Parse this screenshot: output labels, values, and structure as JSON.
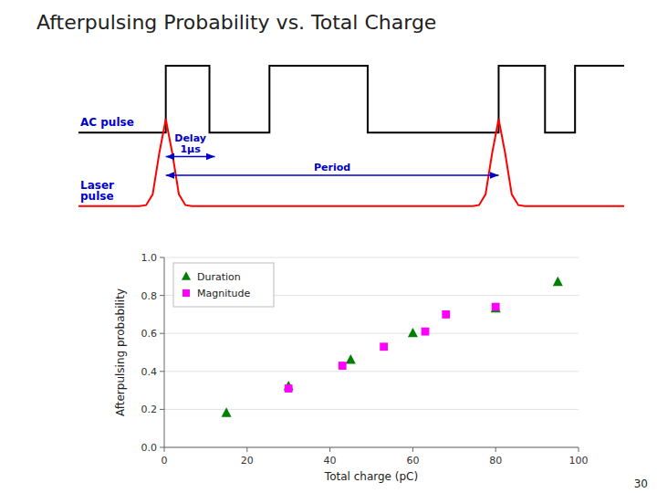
{
  "chart_data": [
    {
      "type": "line",
      "tick_labels": false,
      "color": "#0000CC",
      "xlim": [
        0,
        10
      ],
      "ylim": [
        -0.25,
        1.15
      ],
      "series": [
        {
          "name": "AC pulse",
          "color": "#000000",
          "x": [
            0,
            1.6,
            1.6,
            2.4,
            2.4,
            3.5,
            3.5,
            5.3,
            5.3,
            7.7,
            7.7,
            8.55,
            8.55,
            9.1,
            9.1,
            10
          ],
          "values": [
            0.5,
            0.5,
            1.0,
            1.0,
            0.5,
            0.5,
            1.0,
            1.0,
            0.5,
            0.5,
            1.0,
            1.0,
            0.5,
            0.5,
            1.0,
            1.0
          ]
        },
        {
          "name": "Laser\npulse",
          "color": "#FF0000",
          "x": [
            0,
            1.12,
            1.24,
            1.36,
            1.48,
            1.6,
            1.72,
            1.84,
            1.96,
            2.08,
            7.22,
            7.34,
            7.46,
            7.58,
            7.7,
            7.82,
            7.94,
            8.06,
            8.18,
            10
          ],
          "values": [
            -0.05,
            -0.05,
            -0.043,
            0.038,
            0.344,
            0.6,
            0.344,
            0.038,
            -0.043,
            -0.05,
            -0.05,
            -0.043,
            0.038,
            0.344,
            0.6,
            0.344,
            0.038,
            -0.043,
            -0.05,
            -0.05
          ]
        }
      ],
      "annotations": [
        {
          "text": "Delay\n1μs",
          "x": [
            1.6,
            2.5
          ],
          "y": 0.32
        },
        {
          "text": "Period",
          "x": [
            1.6,
            7.7
          ],
          "y": 0.18
        }
      ]
    },
    {
      "type": "scatter",
      "title": "Afterpulsing Probability vs. Total Charge",
      "xlabel": "Total charge (pC)",
      "ylabel": "Afterpulsing probability",
      "xlim": [
        0,
        100
      ],
      "ylim": [
        0,
        1
      ],
      "xticks": [
        0,
        20,
        40,
        60,
        80,
        100
      ],
      "yticks": [
        {
          "value": 0,
          "label": "0.0"
        },
        0.2,
        0.4,
        0.6,
        0.8,
        {
          "value": 1,
          "label": "1.0"
        }
      ],
      "grid": true,
      "legend": "upper left",
      "series": [
        {
          "name": "Duration",
          "color": "#008000",
          "marker": "triangle",
          "x": [
            15,
            30,
            45,
            60,
            80,
            95
          ],
          "values": [
            0.18,
            0.32,
            0.46,
            0.6,
            0.73,
            0.87
          ]
        },
        {
          "name": "Magnitude",
          "color": "#FF00FF",
          "marker": "square",
          "x": [
            30,
            43,
            53,
            63,
            68,
            80
          ],
          "values": [
            0.31,
            0.43,
            0.53,
            0.61,
            0.7,
            0.74
          ]
        }
      ]
    }
  ],
  "page_number": "30"
}
